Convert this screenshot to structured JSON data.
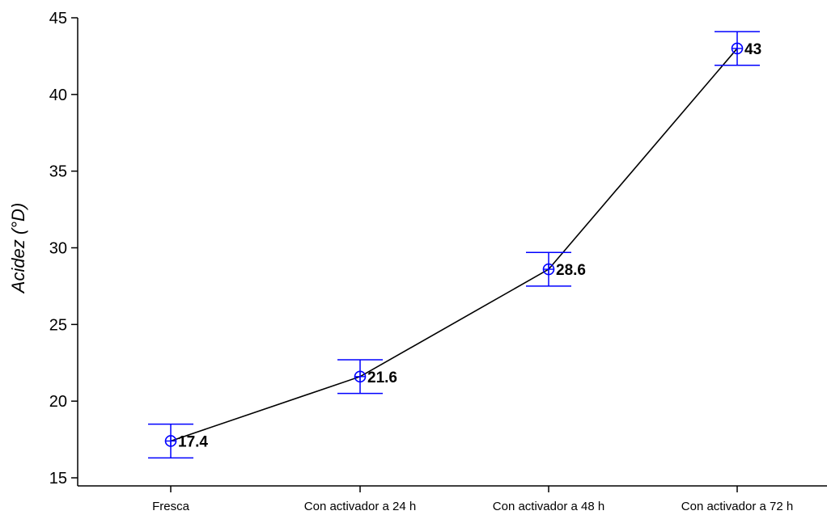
{
  "chart_data": {
    "type": "line",
    "title": "",
    "xlabel": "",
    "ylabel": "Acidez (°D)",
    "categories": [
      "Fresca",
      "Con activador a 24 h",
      "Con activador a 48 h",
      "Con activador a 72 h"
    ],
    "series": [
      {
        "values": [
          17.4,
          21.6,
          28.6,
          43
        ],
        "error_low": [
          16.3,
          20.5,
          27.5,
          41.9
        ],
        "error_high": [
          18.5,
          22.7,
          29.7,
          44.1
        ],
        "data_labels": [
          "17.4",
          "21.6",
          "28.6",
          "43"
        ]
      }
    ],
    "ylim": [
      15,
      45
    ],
    "yticks": [
      "15",
      "20",
      "25",
      "30",
      "35",
      "40",
      "45"
    ],
    "grid": false,
    "colors": {
      "line": "#000000",
      "marker": "#0000ff",
      "errorbar": "#0000ff",
      "axis": "#000000"
    }
  }
}
